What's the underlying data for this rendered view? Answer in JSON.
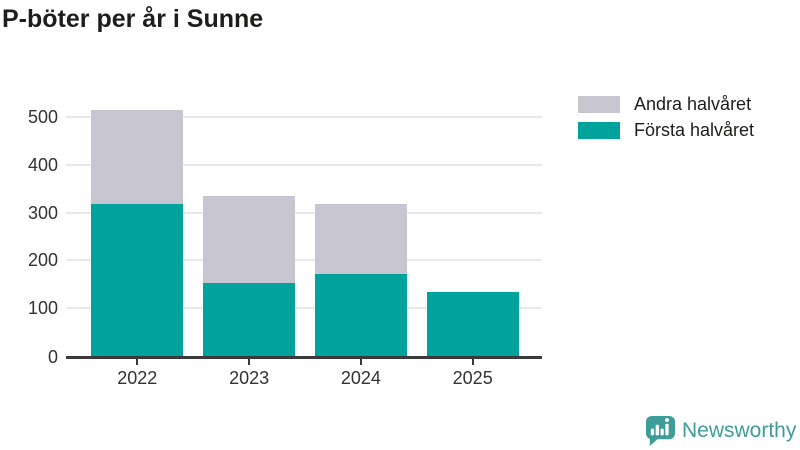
{
  "title": "P-böter per år i Sunne",
  "colors": {
    "first_half": "#00a39b",
    "second_half": "#c7c6d0",
    "axis_line": "#3a3a3a",
    "grid_line": "#e8e8e8",
    "tick_label": "#333333",
    "text": "#1d1d1b",
    "brand": "#3f9d99"
  },
  "legend": {
    "items": [
      {
        "label": "Andra halvåret",
        "color": "#c7c6d0",
        "series_key": "andra-halvaret"
      },
      {
        "label": "Första halvåret",
        "color": "#00a39b",
        "series_key": "forsta-halvaret"
      }
    ]
  },
  "chart_data": {
    "type": "bar",
    "stacked": true,
    "title": "P-böter per år i Sunne",
    "categories": [
      "2022",
      "2023",
      "2024",
      "2025"
    ],
    "series": [
      {
        "name": "Första halvåret",
        "color": "#00a39b",
        "values": [
          318,
          153,
          172,
          134
        ]
      },
      {
        "name": "Andra halvåret",
        "color": "#c7c6d0",
        "values": [
          197,
          182,
          146,
          0
        ]
      }
    ],
    "totals": [
      515,
      335,
      318,
      134
    ],
    "xlabel": "",
    "ylabel": "",
    "ylim": [
      0,
      540
    ],
    "yticks": [
      0,
      100,
      200,
      300,
      400,
      500
    ],
    "grid": true,
    "legend_position": "top-right"
  },
  "footer": {
    "brand": "Newsworthy",
    "logo_icon": "bar-chart-speech-bubble-icon"
  }
}
